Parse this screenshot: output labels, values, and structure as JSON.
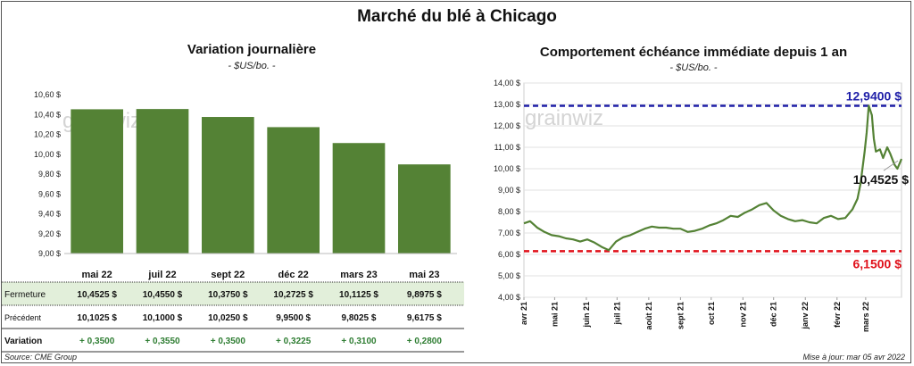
{
  "title": "Marché du blé à Chicago",
  "footer": {
    "source": "Source: CME Group",
    "updated": "Mise à jour: mar 05 avr 2022"
  },
  "watermark": "grainwiz",
  "colors": {
    "bar": "#548235",
    "line": "#548235",
    "high_line": "#1F1FA8",
    "low_line": "#E0101A",
    "table_highlight": "#E2EFDA",
    "variation_text": "#2E7D32"
  },
  "chart_data": [
    {
      "type": "bar",
      "title": "Variation journalière",
      "subtitle": "- $US/bo. -",
      "categories": [
        "mai 22",
        "juil 22",
        "sept 22",
        "déc 22",
        "mars 23",
        "mai 23"
      ],
      "values": [
        10.4525,
        10.455,
        10.375,
        10.2725,
        10.1125,
        9.8975
      ],
      "ylim": [
        9.0,
        10.6
      ],
      "yticks": [
        "9,00 $",
        "9,20 $",
        "9,40 $",
        "9,60 $",
        "9,80 $",
        "10,00 $",
        "10,20 $",
        "10,40 $",
        "10,60 $"
      ],
      "table": {
        "rows": [
          {
            "label": "Fermeture",
            "values": [
              "10,4525 $",
              "10,4550 $",
              "10,3750 $",
              "10,2725 $",
              "10,1125 $",
              "9,8975 $"
            ]
          },
          {
            "label": "Précédent",
            "values": [
              "10,1025 $",
              "10,1000 $",
              "10,0250 $",
              "9,9500 $",
              "9,8025 $",
              "9,6175 $"
            ]
          },
          {
            "label": "Variation",
            "values": [
              "+ 0,3500",
              "+ 0,3550",
              "+ 0,3500",
              "+ 0,3225",
              "+ 0,3100",
              "+ 0,2800"
            ]
          }
        ]
      }
    },
    {
      "type": "line",
      "title": "Comportement échéance immédiate depuis 1 an",
      "subtitle": "- $US/bo. -",
      "ylim": [
        4.0,
        14.0
      ],
      "yticks": [
        "4,00 $",
        "5,00 $",
        "6,00 $",
        "7,00 $",
        "8,00 $",
        "9,00 $",
        "10,00 $",
        "11,00 $",
        "12,00 $",
        "13,00 $",
        "14,00 $"
      ],
      "xticks": [
        "avr 21",
        "mai 21",
        "juin 21",
        "juil 21",
        "août 21",
        "sept 21",
        "oct 21",
        "nov 21",
        "déc 21",
        "janv 22",
        "févr 22",
        "mars 22"
      ],
      "xlim": [
        "2021-04-01",
        "2022-04-05"
      ],
      "high": {
        "value": 12.94,
        "label": "12,9400 $"
      },
      "low": {
        "value": 6.15,
        "label": "6,1500 $"
      },
      "last": {
        "value": 10.4525,
        "label": "10,4525 $"
      },
      "series": [
        {
          "x": [
            "2021-04-01",
            "2021-04-07",
            "2021-04-14",
            "2021-04-21",
            "2021-04-28",
            "2021-05-05",
            "2021-05-12",
            "2021-05-19",
            "2021-05-26",
            "2021-06-02",
            "2021-06-09",
            "2021-06-16",
            "2021-06-23",
            "2021-06-30",
            "2021-07-07",
            "2021-07-14",
            "2021-07-21",
            "2021-07-28",
            "2021-08-04",
            "2021-08-11",
            "2021-08-18",
            "2021-08-25",
            "2021-09-01",
            "2021-09-08",
            "2021-09-15",
            "2021-09-22",
            "2021-09-29",
            "2021-10-06",
            "2021-10-13",
            "2021-10-20",
            "2021-10-27",
            "2021-11-03",
            "2021-11-10",
            "2021-11-17",
            "2021-11-24",
            "2021-12-01",
            "2021-12-08",
            "2021-12-15",
            "2021-12-22",
            "2021-12-29",
            "2022-01-05",
            "2022-01-12",
            "2022-01-19",
            "2022-01-26",
            "2022-02-02",
            "2022-02-09",
            "2022-02-16",
            "2022-02-21",
            "2022-02-24",
            "2022-02-28",
            "2022-03-02",
            "2022-03-04",
            "2022-03-07",
            "2022-03-09",
            "2022-03-11",
            "2022-03-15",
            "2022-03-18",
            "2022-03-22",
            "2022-03-25",
            "2022-03-29",
            "2022-04-01",
            "2022-04-05"
          ],
          "y": [
            7.45,
            7.55,
            7.25,
            7.05,
            6.9,
            6.85,
            6.75,
            6.7,
            6.6,
            6.7,
            6.55,
            6.35,
            6.2,
            6.6,
            6.8,
            6.9,
            7.05,
            7.2,
            7.3,
            7.25,
            7.25,
            7.2,
            7.2,
            7.05,
            7.1,
            7.2,
            7.35,
            7.45,
            7.6,
            7.8,
            7.75,
            7.95,
            8.1,
            8.3,
            8.4,
            8.05,
            7.8,
            7.65,
            7.55,
            7.6,
            7.5,
            7.45,
            7.7,
            7.8,
            7.65,
            7.7,
            8.1,
            8.6,
            9.3,
            10.8,
            11.7,
            12.94,
            12.5,
            11.4,
            10.8,
            10.9,
            10.5,
            11.0,
            10.7,
            10.2,
            10.0,
            10.4525
          ]
        }
      ]
    }
  ]
}
